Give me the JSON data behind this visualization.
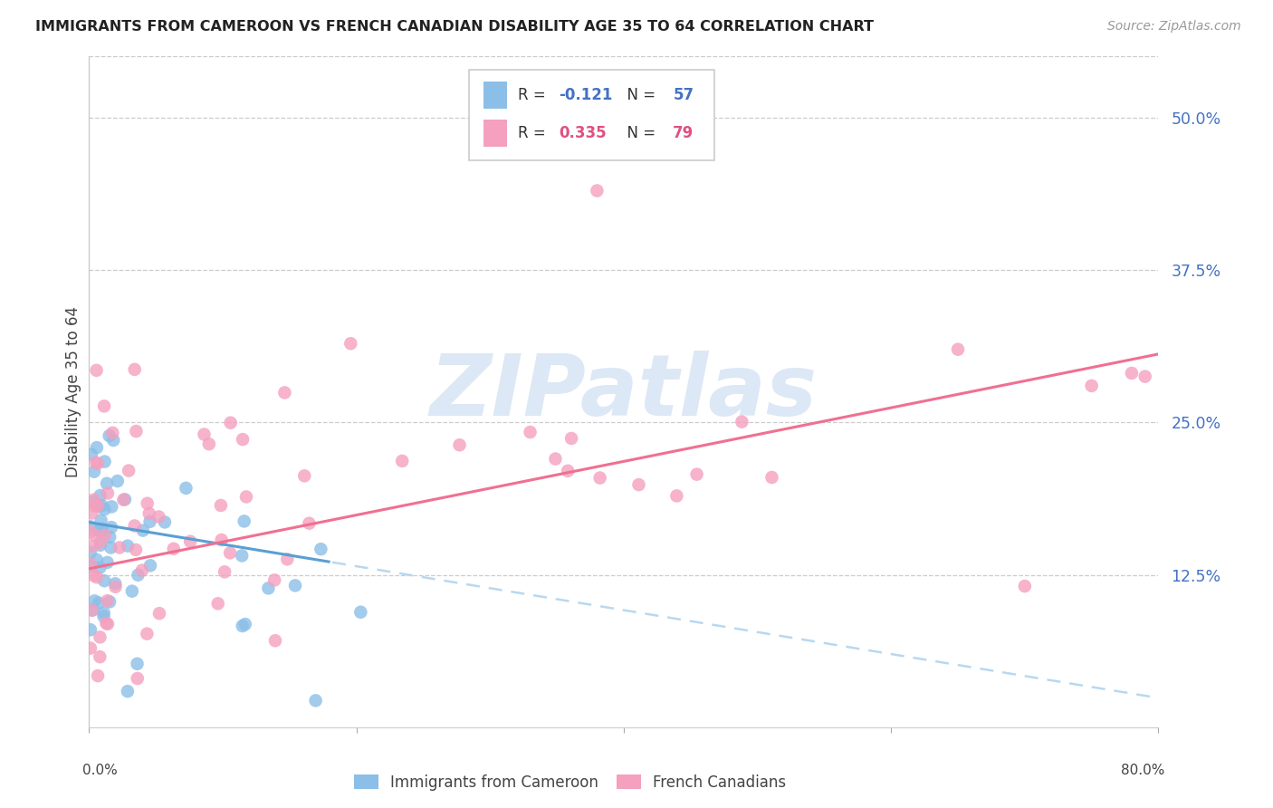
{
  "title": "IMMIGRANTS FROM CAMEROON VS FRENCH CANADIAN DISABILITY AGE 35 TO 64 CORRELATION CHART",
  "source": "Source: ZipAtlas.com",
  "ylabel": "Disability Age 35 to 64",
  "ytick_values": [
    0.125,
    0.25,
    0.375,
    0.5
  ],
  "ytick_labels": [
    "12.5%",
    "25.0%",
    "37.5%",
    "50.0%"
  ],
  "xmin": 0.0,
  "xmax": 0.8,
  "ymin": 0.0,
  "ymax": 0.55,
  "series1_color": "#8bbfe8",
  "series2_color": "#f4a0be",
  "trendline1_solid_color": "#5a9fd4",
  "trendline1_dash_color": "#b8d8f0",
  "trendline2_color": "#f07090",
  "watermark_text": "ZIPatlas",
  "watermark_color": "#dce8f5",
  "R1": -0.121,
  "N1": 57,
  "R2": 0.335,
  "N2": 79,
  "legend1_R_color": "#4472C4",
  "legend2_R_color": "#e05080",
  "legend_N_color": "#4472C4",
  "legend2_N_color": "#e05080",
  "tick_color": "#4472C4",
  "title_color": "#222222",
  "source_color": "#999999",
  "ylabel_color": "#444444"
}
